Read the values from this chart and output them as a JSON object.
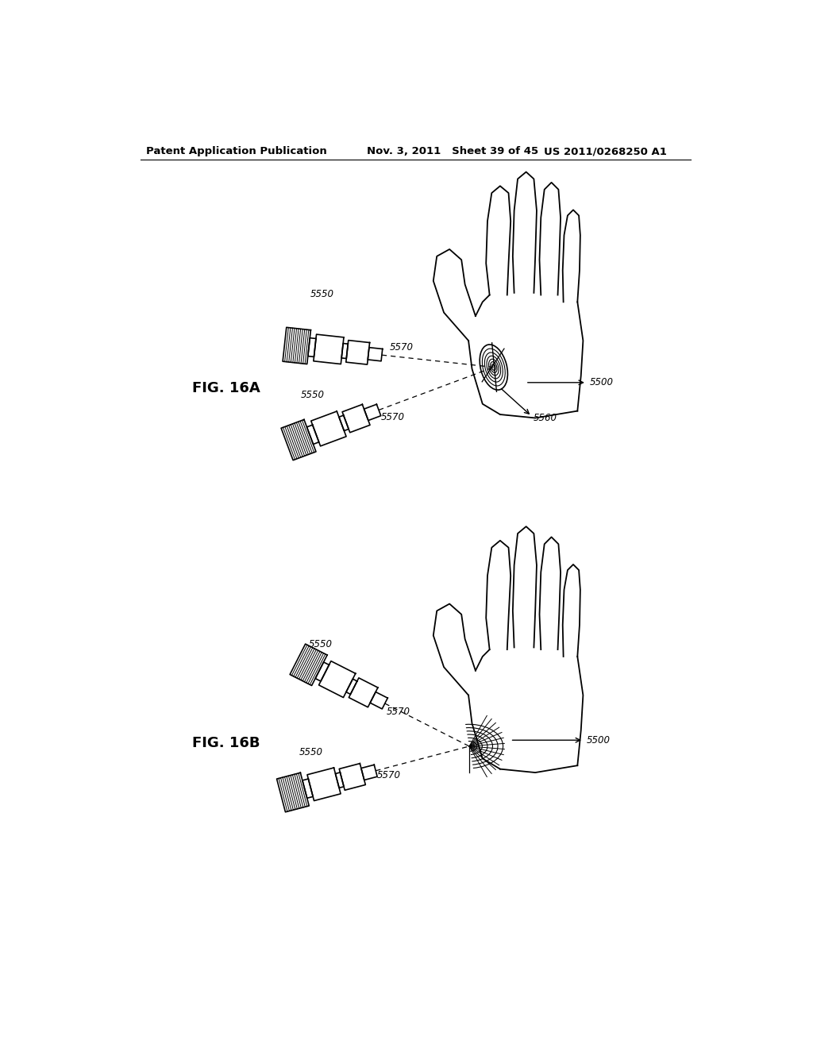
{
  "bg_color": "#ffffff",
  "header_left": "Patent Application Publication",
  "header_middle": "Nov. 3, 2011   Sheet 39 of 45",
  "header_right": "US 2011/0268250 A1",
  "fig_label_A": "FIG. 16A",
  "fig_label_B": "FIG. 16B",
  "lbl_5550": "5550",
  "lbl_5570": "5570",
  "lbl_5500": "5500",
  "lbl_5560": "5560",
  "line_color": "#1a1a1a",
  "line_width": 1.3
}
